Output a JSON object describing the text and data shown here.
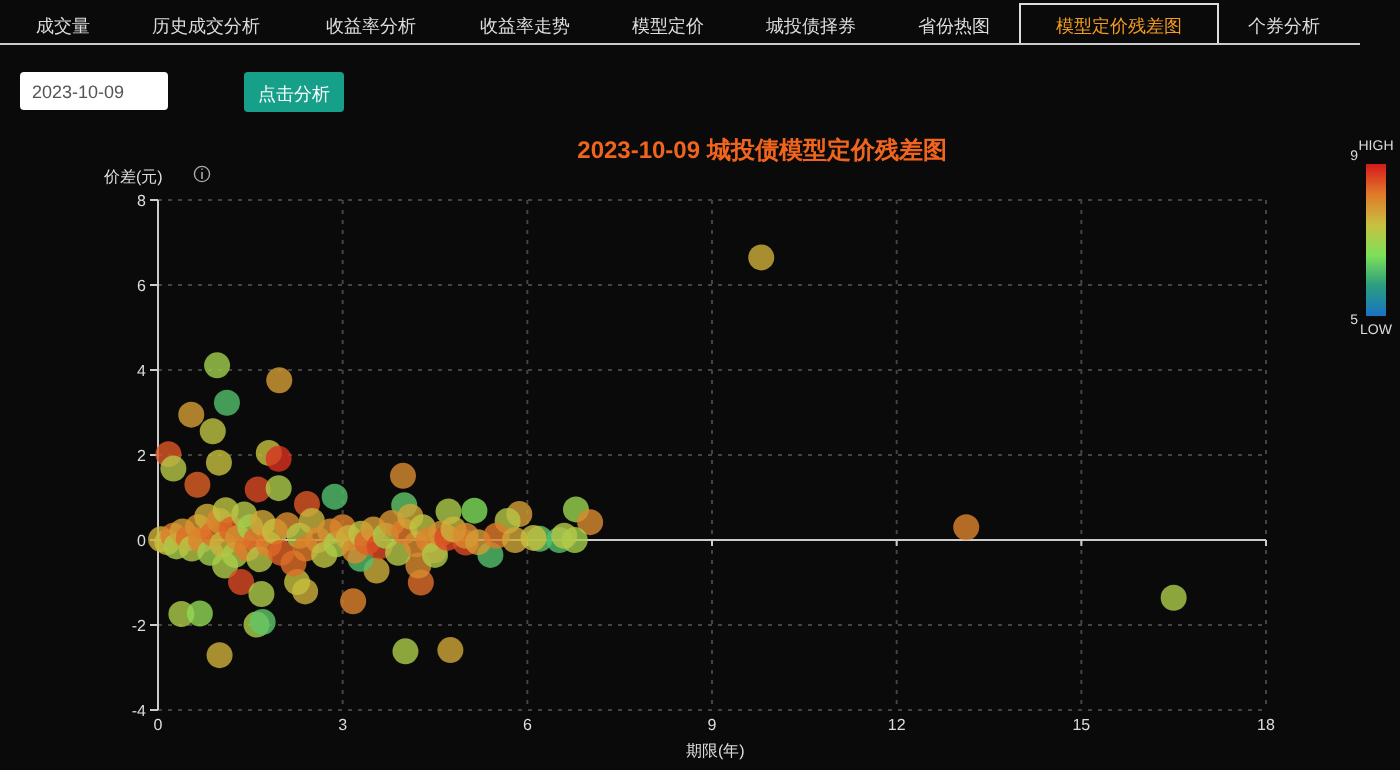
{
  "chart_data": {
    "type": "scatter",
    "title": "2023-10-09 城投债模型定价残差图",
    "xlabel": "期限(年)",
    "ylabel": "价差(元)",
    "xlim": [
      0,
      18
    ],
    "xticks": [
      0,
      3,
      6,
      9,
      12,
      15,
      18
    ],
    "ylim": [
      -4,
      8
    ],
    "yticks": [
      -4,
      -2,
      0,
      2,
      4,
      6,
      8
    ],
    "grid": true,
    "marker": "circle",
    "clim": [
      5,
      9
    ],
    "cticks": [
      5,
      9
    ],
    "annotations": [
      "成交量",
      "历史成交分析",
      "收益率分析",
      "收益率走势",
      "模型定价",
      "城投债择券",
      "省份热图",
      "模型定价残差图",
      "个券分析",
      "2023-10-09",
      "点击分析",
      "HIGH",
      "LOW"
    ],
    "x": [
      0.96,
      1.97,
      1.12,
      0.54,
      0.89,
      0.17,
      0.25,
      0.99,
      1.8,
      1.96,
      0.64,
      1.62,
      1.96,
      2.42,
      2.87,
      3.98,
      4.0,
      4.72,
      5.14,
      5.87,
      5.68,
      6.79,
      7.02,
      5.4,
      1.09,
      1.35,
      1.68,
      2.39,
      2.26,
      0.38,
      0.68,
      1.6,
      1.7,
      1.0,
      3.17,
      4.02,
      4.75,
      4.27,
      3.55,
      3.29,
      4.23,
      6.2,
      6.52,
      6.77,
      5.0,
      4.49,
      9.8,
      13.13,
      16.5,
      0.05,
      0.15,
      0.25,
      0.3,
      0.4,
      0.5,
      0.55,
      0.65,
      0.7,
      0.8,
      0.85,
      0.9,
      1.0,
      1.05,
      1.1,
      1.2,
      1.25,
      1.3,
      1.4,
      1.45,
      1.5,
      1.6,
      1.65,
      1.7,
      1.8,
      1.9,
      2.0,
      2.1,
      2.2,
      2.3,
      2.4,
      2.5,
      2.6,
      2.7,
      2.8,
      2.9,
      3.0,
      3.1,
      3.2,
      3.3,
      3.4,
      3.5,
      3.6,
      3.7,
      3.8,
      3.9,
      4.0,
      4.1,
      4.2,
      4.3,
      4.4,
      4.5,
      4.6,
      4.7,
      4.8,
      5.0,
      5.2,
      5.5,
      5.8,
      6.1,
      6.6
    ],
    "values": [
      4.11,
      3.76,
      3.23,
      2.95,
      2.56,
      2.02,
      1.68,
      1.82,
      2.05,
      1.91,
      1.3,
      1.19,
      1.22,
      0.85,
      1.02,
      1.51,
      0.82,
      0.67,
      0.69,
      0.61,
      0.45,
      0.72,
      0.42,
      -0.35,
      -0.6,
      -0.99,
      -1.27,
      -1.21,
      -0.99,
      -1.74,
      -1.73,
      -1.99,
      -1.93,
      -2.71,
      -1.44,
      -2.62,
      -2.59,
      -1.0,
      -0.72,
      -0.44,
      -0.6,
      0.03,
      0,
      0,
      -0.06,
      -0.24,
      6.65,
      0.3,
      -1.36,
      0.02,
      -0.05,
      0.1,
      -0.15,
      0.2,
      0.05,
      -0.2,
      0.3,
      0.0,
      0.55,
      -0.3,
      0.15,
      0.45,
      -0.1,
      0.7,
      0.25,
      -0.35,
      0.05,
      0.6,
      -0.2,
      0.3,
      0.0,
      -0.45,
      0.4,
      -0.1,
      0.2,
      -0.3,
      0.35,
      -0.55,
      0.1,
      -0.2,
      0.45,
      0.0,
      -0.35,
      0.2,
      -0.1,
      0.3,
      0.05,
      -0.25,
      0.15,
      -0.05,
      0.25,
      -0.15,
      0.1,
      0.4,
      -0.3,
      0.2,
      0.55,
      -0.1,
      0.3,
      0.0,
      -0.35,
      0.15,
      0.05,
      0.25,
      0.1,
      -0.05,
      0.1,
      0.0,
      0.05,
      0.1
    ],
    "cvalues": [
      7,
      7.8,
      6.2,
      7.8,
      7.3,
      8.5,
      7.2,
      7.4,
      7.4,
      8.8,
      8.4,
      8.6,
      7.1,
      8.5,
      6.2,
      8,
      6.3,
      7.1,
      6.6,
      7.8,
      7.2,
      6.9,
      8,
      6.2,
      7.1,
      8.6,
      7.1,
      7.6,
      7.4,
      7.1,
      6.8,
      7.1,
      6.3,
      7.6,
      8.1,
      7.1,
      7.7,
      8.3,
      7.6,
      6.2,
      8,
      6.3,
      6.2,
      7,
      8.6,
      8.5,
      7.6,
      8.1,
      7.1,
      7.6,
      7.4,
      8.2,
      7.1,
      7.8,
      8.3,
      7.2,
      7.9,
      8.1,
      7.6,
      7,
      8.3,
      8,
      7.5,
      7.3,
      8.4,
      7.1,
      7.9,
      7.2,
      8.2,
      7,
      8.3,
      7.2,
      7.7,
      8.1,
      7.4,
      8.4,
      8,
      8.3,
      7.2,
      8.2,
      7.5,
      8,
      7.3,
      7.9,
      7.1,
      8.1,
      7.6,
      8,
      7.3,
      8.4,
      7.8,
      8.6,
      7.1,
      7.9,
      7.2,
      8.2,
      7.7,
      8,
      7.3,
      8.1,
      7.1,
      7.9,
      8.6,
      7.5,
      8,
      7.8,
      8.2,
      7.7,
      7.4,
      7.2
    ]
  }
}
